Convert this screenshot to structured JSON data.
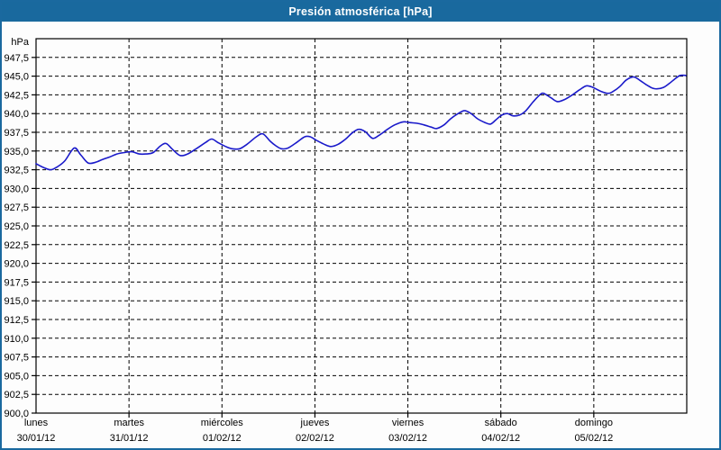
{
  "window": {
    "title": "Presión atmosférica [hPa]",
    "titlebar_color": "#19699e",
    "border_color": "#1a699f",
    "plot_background": "#ffffff"
  },
  "chart_data": {
    "type": "line",
    "title": "Presión atmosférica [hPa]",
    "ylabel": "hPa",
    "xlabel": "",
    "ylim": [
      900,
      950
    ],
    "y_tick_step": 2.5,
    "y_ticks": [
      900,
      902.5,
      905,
      907.5,
      910,
      912.5,
      915,
      917.5,
      920,
      922.5,
      925,
      927.5,
      930,
      932.5,
      935,
      937.5,
      940,
      942.5,
      945,
      947.5
    ],
    "y_tick_labels": [
      "900,0",
      "902,5",
      "905,0",
      "907,5",
      "910,0",
      "912,5",
      "915,0",
      "917,5",
      "920,0",
      "922,5",
      "925,0",
      "927,5",
      "930,0",
      "932,5",
      "935,0",
      "937,5",
      "940,0",
      "942,5",
      "945,0",
      "947,5"
    ],
    "x_days": [
      {
        "name": "lunes",
        "date": "30/01/12"
      },
      {
        "name": "martes",
        "date": "31/01/12"
      },
      {
        "name": "miércoles",
        "date": "01/02/12"
      },
      {
        "name": "jueves",
        "date": "02/02/12"
      },
      {
        "name": "viernes",
        "date": "03/02/12"
      },
      {
        "name": "sábado",
        "date": "04/02/12"
      },
      {
        "name": "domingo",
        "date": "05/02/12"
      }
    ],
    "grid": {
      "horizontal": "dashed at every 2.5 hPa tick",
      "vertical": "dashed at each day boundary",
      "color": "#000000"
    },
    "legend": "none",
    "line_color": "#1a1aca",
    "series": [
      {
        "name": "Presión atmosférica",
        "units": "hPa",
        "points": [
          [
            0.0,
            933.3
          ],
          [
            0.08,
            932.8
          ],
          [
            0.16,
            932.5
          ],
          [
            0.23,
            932.9
          ],
          [
            0.31,
            933.7
          ],
          [
            0.41,
            935.4
          ],
          [
            0.48,
            934.5
          ],
          [
            0.56,
            933.4
          ],
          [
            0.64,
            933.5
          ],
          [
            0.72,
            933.9
          ],
          [
            0.79,
            934.2
          ],
          [
            0.87,
            934.6
          ],
          [
            0.95,
            934.8
          ],
          [
            1.03,
            934.9
          ],
          [
            1.11,
            934.6
          ],
          [
            1.18,
            934.6
          ],
          [
            1.26,
            934.8
          ],
          [
            1.34,
            935.7
          ],
          [
            1.4,
            936.0
          ],
          [
            1.47,
            935.2
          ],
          [
            1.55,
            934.4
          ],
          [
            1.63,
            934.6
          ],
          [
            1.71,
            935.2
          ],
          [
            1.82,
            936.1
          ],
          [
            1.89,
            936.6
          ],
          [
            1.96,
            936.1
          ],
          [
            2.04,
            935.6
          ],
          [
            2.11,
            935.3
          ],
          [
            2.19,
            935.3
          ],
          [
            2.27,
            935.9
          ],
          [
            2.37,
            936.9
          ],
          [
            2.44,
            937.3
          ],
          [
            2.52,
            936.3
          ],
          [
            2.58,
            935.7
          ],
          [
            2.64,
            935.3
          ],
          [
            2.71,
            935.4
          ],
          [
            2.81,
            936.2
          ],
          [
            2.89,
            936.9
          ],
          [
            2.95,
            936.9
          ],
          [
            3.02,
            936.4
          ],
          [
            3.1,
            935.9
          ],
          [
            3.17,
            935.6
          ],
          [
            3.25,
            935.9
          ],
          [
            3.33,
            936.6
          ],
          [
            3.4,
            937.4
          ],
          [
            3.47,
            937.9
          ],
          [
            3.54,
            937.6
          ],
          [
            3.62,
            936.7
          ],
          [
            3.69,
            937.1
          ],
          [
            3.78,
            937.9
          ],
          [
            3.86,
            938.5
          ],
          [
            3.95,
            938.9
          ],
          [
            4.02,
            938.8
          ],
          [
            4.1,
            938.7
          ],
          [
            4.17,
            938.5
          ],
          [
            4.25,
            938.2
          ],
          [
            4.31,
            938.0
          ],
          [
            4.39,
            938.5
          ],
          [
            4.46,
            939.3
          ],
          [
            4.54,
            940.0
          ],
          [
            4.61,
            940.4
          ],
          [
            4.68,
            940.0
          ],
          [
            4.75,
            939.3
          ],
          [
            4.83,
            938.8
          ],
          [
            4.89,
            938.6
          ],
          [
            4.95,
            939.2
          ],
          [
            5.01,
            939.8
          ],
          [
            5.07,
            940.0
          ],
          [
            5.13,
            939.7
          ],
          [
            5.2,
            939.8
          ],
          [
            5.27,
            940.4
          ],
          [
            5.35,
            941.6
          ],
          [
            5.42,
            942.5
          ],
          [
            5.46,
            942.7
          ],
          [
            5.54,
            942.1
          ],
          [
            5.61,
            941.6
          ],
          [
            5.69,
            941.9
          ],
          [
            5.77,
            942.5
          ],
          [
            5.85,
            943.2
          ],
          [
            5.92,
            943.7
          ],
          [
            5.99,
            943.5
          ],
          [
            6.07,
            943.0
          ],
          [
            6.15,
            942.7
          ],
          [
            6.2,
            942.9
          ],
          [
            6.28,
            943.6
          ],
          [
            6.35,
            944.5
          ],
          [
            6.43,
            944.9
          ],
          [
            6.5,
            944.4
          ],
          [
            6.56,
            943.9
          ],
          [
            6.63,
            943.4
          ],
          [
            6.68,
            943.3
          ],
          [
            6.75,
            943.5
          ],
          [
            6.81,
            944.0
          ],
          [
            6.88,
            944.7
          ],
          [
            6.93,
            945.1
          ],
          [
            6.99,
            945.1
          ]
        ]
      }
    ]
  }
}
